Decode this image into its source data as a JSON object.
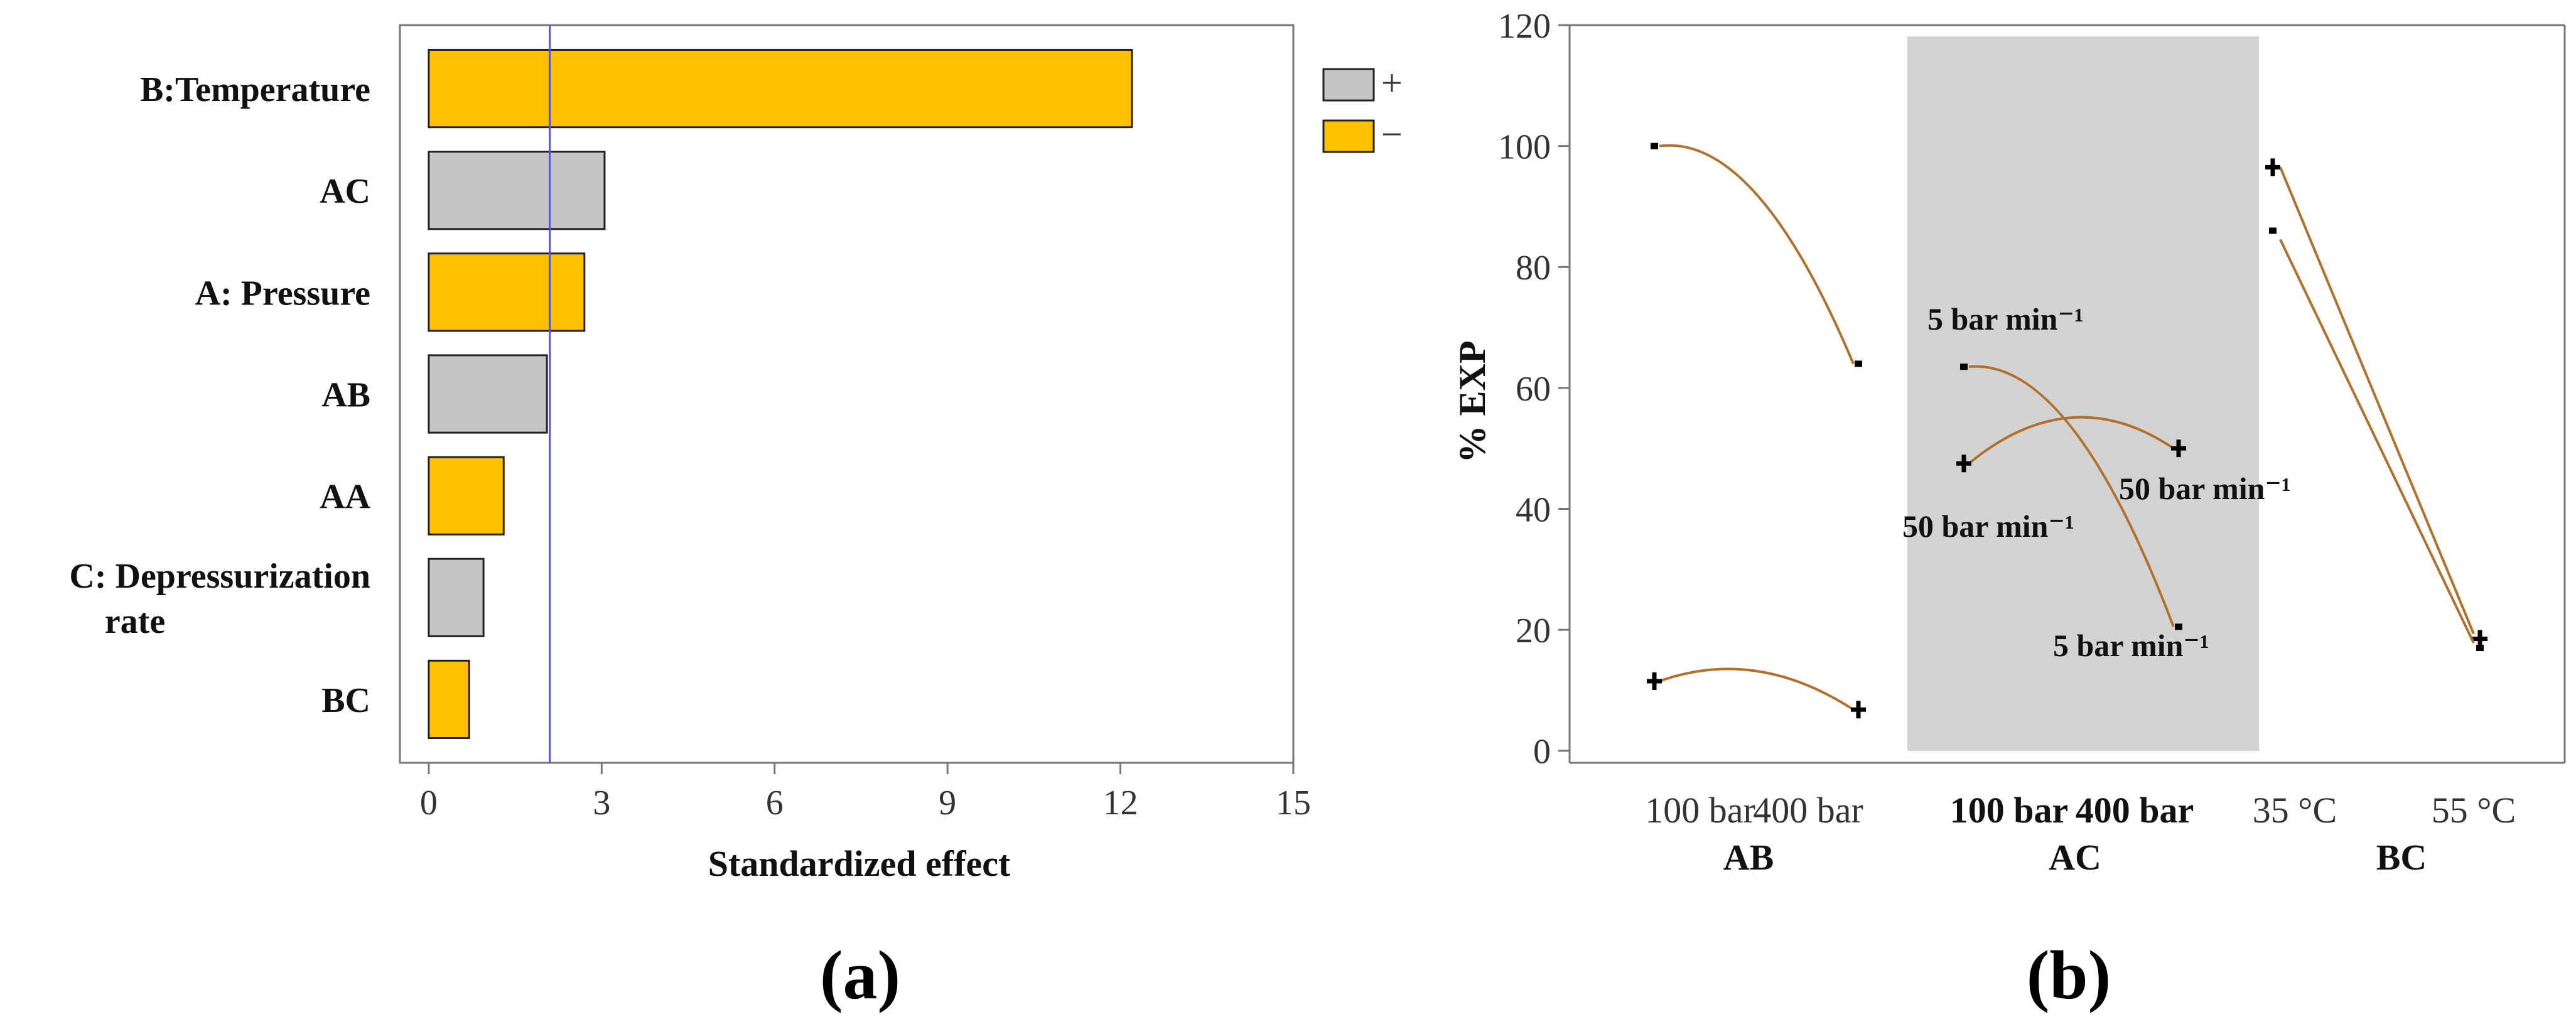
{
  "chart_data": [
    {
      "type": "bar",
      "orientation": "horizontal",
      "title": "",
      "panel_label": "(a)",
      "xlabel": "Standardized effect",
      "ylabel": "",
      "xlim": [
        -0.5,
        15
      ],
      "xticks": [
        0,
        3,
        6,
        9,
        12,
        15
      ],
      "reference_line": 2.1,
      "categories": [
        "B:Temperature",
        "AC",
        "A: Pressure",
        "AB",
        "AA",
        "C: Depressurization rate",
        "BC"
      ],
      "category_lines": [
        [
          "B:Temperature"
        ],
        [
          "AC"
        ],
        [
          "A: Pressure"
        ],
        [
          "AB"
        ],
        [
          "AA"
        ],
        [
          "C: Depressurization",
          "rate"
        ],
        [
          "BC"
        ]
      ],
      "values": [
        12.2,
        3.05,
        2.7,
        2.05,
        1.3,
        0.95,
        0.7
      ],
      "signs": [
        "-",
        "+",
        "-",
        "+",
        "-",
        "+",
        "-"
      ],
      "legend": [
        {
          "label": "+",
          "color": "#c6c6c6"
        },
        {
          "label": "−",
          "color": "#ffc000"
        }
      ],
      "legend_position": "top-right"
    },
    {
      "type": "line",
      "title": "",
      "panel_label": "(b)",
      "ylabel": "% EXP",
      "ylim": [
        -2,
        120
      ],
      "yticks": [
        0,
        20,
        40,
        60,
        80,
        100,
        120
      ],
      "groups": [
        {
          "name": "AB",
          "tick_labels": [
            "100 bar",
            "400 bar"
          ],
          "shaded": false,
          "series": [
            {
              "name": "-",
              "values": [
                100,
                64
              ],
              "marker": "-"
            },
            {
              "name": "+",
              "values": [
                11.5,
                6.8
              ],
              "marker": "+"
            }
          ]
        },
        {
          "name": "AC",
          "tick_labels": [
            "100 bar",
            "400 bar"
          ],
          "shaded": true,
          "series": [
            {
              "name": "5 bar min⁻¹",
              "values": [
                63.5,
                20.5
              ],
              "marker": "-"
            },
            {
              "name": "50 bar min⁻¹",
              "values": [
                47.5,
                50
              ],
              "marker": "+"
            }
          ],
          "annotations": [
            "5 bar min⁻¹",
            "50 bar min⁻¹",
            "50 bar min⁻¹",
            "5 bar min⁻¹"
          ]
        },
        {
          "name": "BC",
          "tick_labels": [
            "35 °C",
            "55 °C"
          ],
          "shaded": false,
          "series": [
            {
              "name": "+",
              "values": [
                96.5,
                18.5
              ],
              "marker": "+"
            },
            {
              "name": "-",
              "values": [
                86,
                17
              ],
              "marker": "-"
            }
          ]
        }
      ]
    }
  ]
}
